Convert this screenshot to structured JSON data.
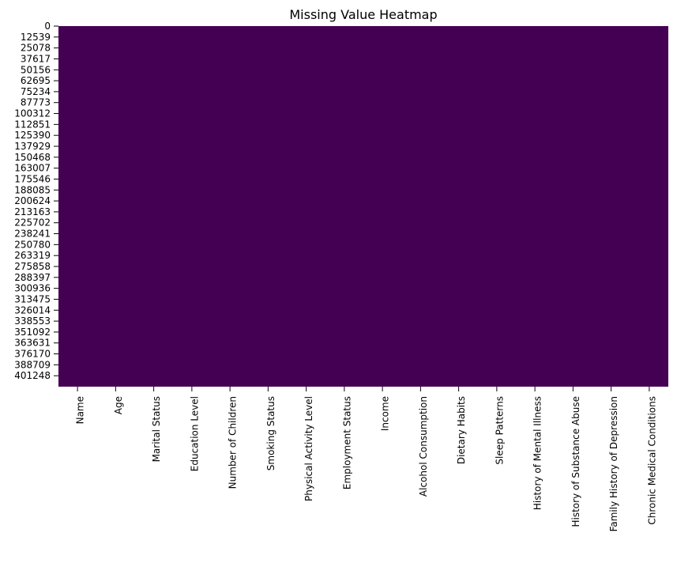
{
  "chart_data": {
    "type": "heatmap",
    "title": "Missing Value Heatmap",
    "xlabel": "",
    "ylabel": "",
    "categories": [
      "Name",
      "Age",
      "Marital Status",
      "Education Level",
      "Number of Children",
      "Smoking Status",
      "Physical Activity Level",
      "Employment Status",
      "Income",
      "Alcohol Consumption",
      "Dietary Habits",
      "Sleep Patterns",
      "History of Mental Illness",
      "History of Substance Abuse",
      "Family History of Depression",
      "Chronic Medical Conditions"
    ],
    "y_tick_labels": [
      "0",
      "12539",
      "25078",
      "37617",
      "50156",
      "62695",
      "75234",
      "87773",
      "100312",
      "112851",
      "125390",
      "137929",
      "150468",
      "163007",
      "175546",
      "188085",
      "200624",
      "213163",
      "225702",
      "238241",
      "250780",
      "263319",
      "275858",
      "288397",
      "300936",
      "313475",
      "326014",
      "338553",
      "351092",
      "363631",
      "376170",
      "388709",
      "401248"
    ],
    "values_summary": "all cells False",
    "colorbar": false,
    "colors": {
      "cell_fill": "#440154",
      "background": "#ffffff",
      "tick_color": "#000000",
      "text_color": "#000000"
    }
  }
}
